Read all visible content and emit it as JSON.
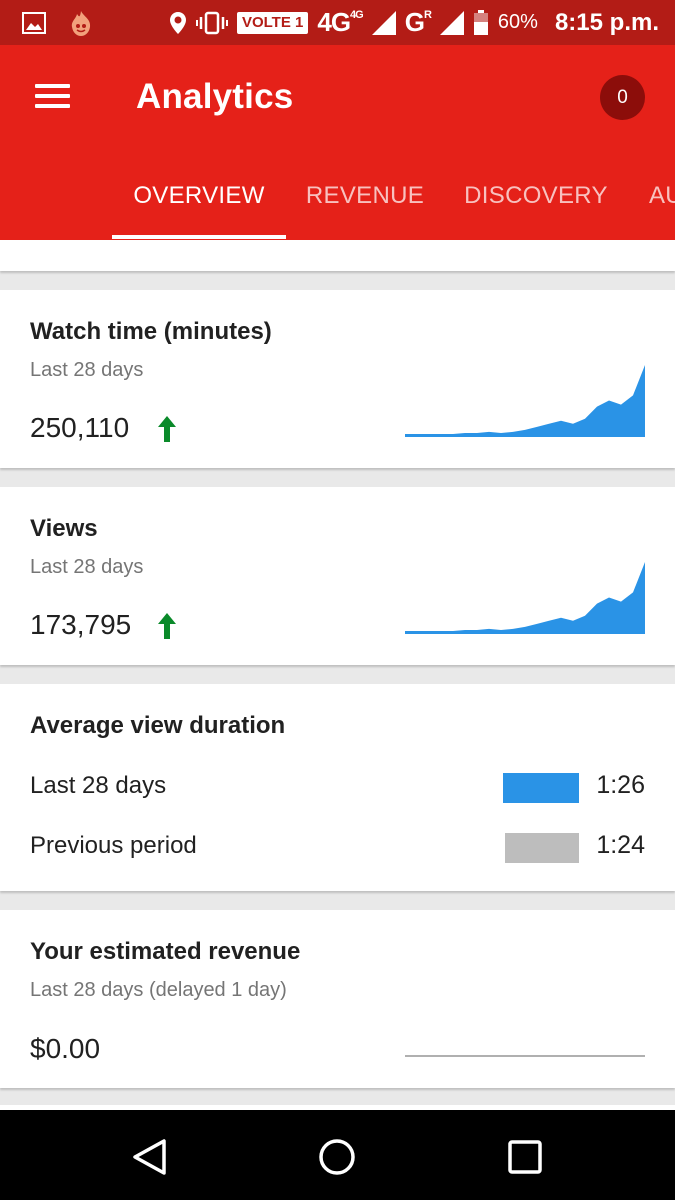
{
  "status_bar": {
    "volte": "VOLTE 1",
    "network": "4G",
    "network_sup": "4G",
    "network2": "G",
    "network2_sup": "R",
    "battery": "60%",
    "time": "8:15 p.m."
  },
  "app_bar": {
    "title": "Analytics",
    "notification_count": "0",
    "tabs": [
      "OVERVIEW",
      "REVENUE",
      "DISCOVERY",
      "AU"
    ]
  },
  "watch_time": {
    "title": "Watch time (minutes)",
    "subtitle": "Last 28 days",
    "value": "250,110",
    "trend": "up",
    "spark": [
      2,
      2,
      2,
      2,
      2,
      3,
      3,
      4,
      3,
      4,
      6,
      9,
      12,
      15,
      12,
      17,
      29,
      35,
      31,
      40,
      70
    ]
  },
  "views": {
    "title": "Views",
    "subtitle": "Last 28 days",
    "value": "173,795",
    "trend": "up",
    "spark": [
      2,
      2,
      2,
      2,
      2,
      3,
      3,
      4,
      3,
      4,
      6,
      9,
      12,
      15,
      12,
      17,
      29,
      35,
      31,
      40,
      70
    ]
  },
  "avg_duration": {
    "title": "Average view duration",
    "rows": [
      {
        "label": "Last 28 days",
        "value": "1:26",
        "color": "#2a93e6",
        "fraction": 1.0
      },
      {
        "label": "Previous period",
        "value": "1:24",
        "color": "#bdbdbd",
        "fraction": 0.977
      }
    ]
  },
  "revenue": {
    "title": "Your estimated revenue",
    "subtitle": "Last 28 days (delayed 1 day)",
    "value": "$0.00"
  },
  "colors": {
    "status_bar": "#b31c16",
    "app_bar": "#e52119",
    "accent_blue": "#2a93e6",
    "trend_green": "#0a8a2a"
  },
  "nav_icons": [
    "back-icon",
    "home-icon",
    "recents-icon"
  ]
}
